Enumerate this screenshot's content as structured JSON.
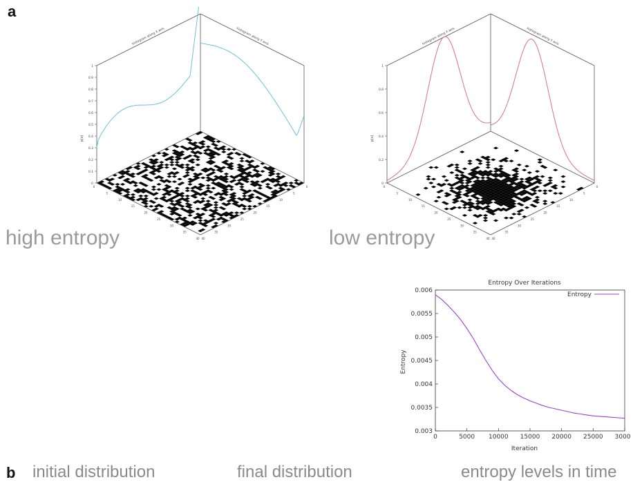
{
  "panel_a": {
    "letter": "a",
    "left": {
      "label": "high entropy",
      "hist_x_title": "histogram along X axis",
      "hist_y_title": "histogram along Y axis",
      "z_label": "p(x)",
      "z_ticks": [
        "0",
        "0.1",
        "0.2",
        "0.3",
        "0.4",
        "0.5",
        "0.6",
        "0.7",
        "0.8",
        "0.9",
        "1"
      ],
      "curve_color": "#6cc0d8"
    },
    "right": {
      "label": "low entropy",
      "hist_x_title": "histogram along X axis",
      "hist_y_title": "histogram along Y axis",
      "z_label": "p(x)",
      "z_ticks": [
        "0",
        "0.2",
        "0.4",
        "0.6",
        "0.8",
        "1"
      ],
      "curve_color": "#d9707e"
    },
    "floor_ticks": [
      "0",
      "5",
      "10",
      "15",
      "20",
      "25",
      "30",
      "35",
      "40"
    ]
  },
  "panel_b": {
    "letter": "b",
    "captions": {
      "initial": "initial distribution",
      "final": "final distribution",
      "entropy": "entropy levels in time"
    }
  },
  "chart_data": {
    "type": "line",
    "title": "Entropy Over Iterations",
    "xlabel": "Iteration",
    "ylabel": "Entropy",
    "xlim": [
      0,
      30000
    ],
    "ylim": [
      0.003,
      0.006
    ],
    "xticks": [
      "0",
      "5000",
      "10000",
      "15000",
      "20000",
      "25000",
      "30000"
    ],
    "yticks": [
      "0.003",
      "0.0035",
      "0.004",
      "0.0045",
      "0.005",
      "0.0055",
      "0.006"
    ],
    "legend_position": "top-right",
    "series": [
      {
        "name": "Entropy",
        "color": "#9a3fd0",
        "x": [
          0,
          1000,
          2000,
          3000,
          4000,
          5000,
          6000,
          7000,
          8000,
          9000,
          10000,
          11000,
          12000,
          13000,
          14000,
          15000,
          16000,
          17000,
          18000,
          19000,
          20000,
          21000,
          22000,
          23000,
          24000,
          25000,
          26000,
          27000,
          28000,
          29000,
          30000
        ],
        "values": [
          0.0059,
          0.0058,
          0.00567,
          0.00553,
          0.00537,
          0.00518,
          0.00497,
          0.00473,
          0.0045,
          0.00429,
          0.00411,
          0.00397,
          0.00386,
          0.00377,
          0.0037,
          0.00364,
          0.00359,
          0.00354,
          0.0035,
          0.00347,
          0.00344,
          0.00341,
          0.00338,
          0.00336,
          0.00334,
          0.00332,
          0.00331,
          0.0033,
          0.00329,
          0.00328,
          0.00327
        ]
      }
    ]
  },
  "colors": {
    "grid_cell": "#000000",
    "background": "#ffffff",
    "axis": "#333333"
  }
}
